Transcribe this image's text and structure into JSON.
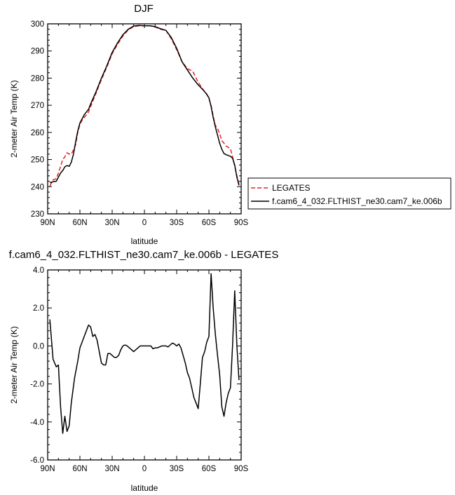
{
  "chart_data": [
    {
      "type": "line",
      "title": "DJF",
      "xlabel": "latitude",
      "ylabel": "2-meter Air Temp (K)",
      "xlim": [
        90,
        -90
      ],
      "ylim": [
        230,
        300
      ],
      "xticks": [
        {
          "value": 90,
          "label": "90N"
        },
        {
          "value": 60,
          "label": "60N"
        },
        {
          "value": 30,
          "label": "30N"
        },
        {
          "value": 0,
          "label": "0"
        },
        {
          "value": -30,
          "label": "30S"
        },
        {
          "value": -60,
          "label": "60S"
        },
        {
          "value": -90,
          "label": "90S"
        }
      ],
      "yticks": [
        {
          "value": 230,
          "label": "230"
        },
        {
          "value": 240,
          "label": "240"
        },
        {
          "value": 250,
          "label": "250"
        },
        {
          "value": 260,
          "label": "260"
        },
        {
          "value": 270,
          "label": "270"
        },
        {
          "value": 280,
          "label": "280"
        },
        {
          "value": 290,
          "label": "290"
        },
        {
          "value": 300,
          "label": "300"
        }
      ],
      "legend": {
        "position": "right"
      },
      "series": [
        {
          "name": "LEGATES",
          "color": "#e8201f",
          "dash": "dashed",
          "x": [
            88,
            85,
            82,
            80,
            78,
            76,
            74,
            72,
            70,
            68,
            66,
            64,
            62,
            60,
            58,
            56,
            54,
            52,
            50,
            45,
            40,
            35,
            30,
            25,
            20,
            15,
            10,
            5,
            0,
            -5,
            -10,
            -15,
            -20,
            -25,
            -30,
            -35,
            -40,
            -45,
            -50,
            -55,
            -58,
            -60,
            -62,
            -64,
            -66,
            -68,
            -70,
            -72,
            -74,
            -76,
            -78,
            -80,
            -82,
            -84,
            -86,
            -88
          ],
          "values": [
            240.2,
            242.5,
            243.0,
            245.0,
            247.5,
            250.0,
            251.0,
            252.5,
            252.0,
            252.0,
            253.5,
            255.5,
            260.0,
            263.0,
            264.5,
            265.5,
            266.5,
            267.5,
            269.5,
            274.5,
            279.5,
            284.0,
            289.0,
            292.5,
            295.5,
            297.8,
            299.0,
            299.3,
            299.3,
            299.3,
            298.8,
            298.0,
            297.6,
            294.5,
            290.5,
            286.0,
            283.5,
            282.5,
            278.5,
            275.5,
            274.2,
            272.5,
            270.0,
            266.0,
            262.5,
            261.5,
            259.5,
            257.0,
            256.0,
            255.0,
            254.5,
            254.0,
            251.0,
            247.5,
            244.0,
            241.0
          ]
        },
        {
          "name": "f.cam6_4_032.FLTHIST_ne30.cam7_ke.006b",
          "color": "#000000",
          "dash": "solid",
          "x": [
            88,
            85,
            82,
            80,
            78,
            76,
            74,
            72,
            70,
            68,
            66,
            64,
            62,
            60,
            58,
            56,
            54,
            52,
            50,
            45,
            40,
            35,
            30,
            25,
            20,
            15,
            10,
            5,
            0,
            -5,
            -10,
            -15,
            -20,
            -25,
            -30,
            -35,
            -40,
            -45,
            -50,
            -55,
            -58,
            -60,
            -62,
            -64,
            -66,
            -68,
            -70,
            -72,
            -74,
            -76,
            -78,
            -80,
            -82,
            -84,
            -86,
            -88
          ],
          "values": [
            241.5,
            241.8,
            242.0,
            243.5,
            245.0,
            246.0,
            247.3,
            247.8,
            247.5,
            249.0,
            252.0,
            256.5,
            260.5,
            263.5,
            265.0,
            266.5,
            267.5,
            268.5,
            270.5,
            275.0,
            280.0,
            284.5,
            289.5,
            293.0,
            296.0,
            298.0,
            299.2,
            299.4,
            299.3,
            299.3,
            299.0,
            298.2,
            297.6,
            295.0,
            291.0,
            286.0,
            283.0,
            280.0,
            277.5,
            275.5,
            274.0,
            272.8,
            269.5,
            265.5,
            262.0,
            259.0,
            256.0,
            253.8,
            252.2,
            251.8,
            251.5,
            251.2,
            250.5,
            248.0,
            243.5,
            240.5
          ]
        }
      ]
    },
    {
      "type": "line",
      "title": "f.cam6_4_032.FLTHIST_ne30.cam7_ke.006b - LEGATES",
      "xlabel": "latitude",
      "ylabel": "2-meter Air Temp (K)",
      "xlim": [
        90,
        -90
      ],
      "ylim": [
        -6,
        4
      ],
      "xticks": [
        {
          "value": 90,
          "label": "90N"
        },
        {
          "value": 60,
          "label": "60N"
        },
        {
          "value": 30,
          "label": "30N"
        },
        {
          "value": 0,
          "label": "0"
        },
        {
          "value": -30,
          "label": "30S"
        },
        {
          "value": -60,
          "label": "60S"
        },
        {
          "value": -90,
          "label": "90S"
        }
      ],
      "yticks": [
        {
          "value": -6,
          "label": "-6.0"
        },
        {
          "value": -4,
          "label": "-4.0"
        },
        {
          "value": -2,
          "label": "-2.0"
        },
        {
          "value": 0,
          "label": "0.0"
        },
        {
          "value": 2,
          "label": "2.0"
        },
        {
          "value": 4,
          "label": "4.0"
        }
      ],
      "series": [
        {
          "color": "#000000",
          "dash": "solid",
          "x": [
            88,
            85,
            82,
            80,
            78,
            76,
            74,
            72,
            70,
            68,
            65,
            62,
            60,
            58,
            56,
            54,
            52,
            50,
            48,
            46,
            44,
            42,
            40,
            38,
            36,
            34,
            32,
            30,
            28,
            26,
            24,
            22,
            20,
            18,
            16,
            14,
            12,
            10,
            8,
            6,
            4,
            2,
            0,
            -2,
            -4,
            -6,
            -8,
            -10,
            -12,
            -14,
            -16,
            -18,
            -20,
            -22,
            -24,
            -26,
            -28,
            -30,
            -32,
            -34,
            -36,
            -38,
            -40,
            -42,
            -44,
            -46,
            -48,
            -50,
            -52,
            -54,
            -56,
            -58,
            -60,
            -62,
            -64,
            -66,
            -68,
            -70,
            -72,
            -74,
            -76,
            -78,
            -80,
            -82,
            -84,
            -86,
            -88
          ],
          "values": [
            1.4,
            -0.7,
            -1.1,
            -1.0,
            -3.2,
            -4.6,
            -3.7,
            -4.5,
            -4.2,
            -3.0,
            -1.7,
            -0.8,
            -0.1,
            0.2,
            0.5,
            0.8,
            1.1,
            1.0,
            0.5,
            0.6,
            0.3,
            -0.3,
            -0.9,
            -1.0,
            -1.0,
            -0.4,
            -0.4,
            -0.5,
            -0.6,
            -0.6,
            -0.5,
            -0.2,
            0.0,
            0.05,
            0.0,
            -0.1,
            -0.2,
            -0.3,
            -0.2,
            -0.1,
            0.0,
            0.0,
            0.0,
            0.0,
            0.0,
            0.0,
            -0.15,
            -0.1,
            -0.1,
            -0.05,
            0.0,
            0.0,
            0.0,
            -0.05,
            0.05,
            0.15,
            0.1,
            0.0,
            0.1,
            -0.1,
            -0.5,
            -0.9,
            -1.4,
            -1.7,
            -2.2,
            -2.7,
            -3.0,
            -3.3,
            -2.0,
            -0.6,
            -0.3,
            0.2,
            0.5,
            3.8,
            2.0,
            0.6,
            -0.5,
            -1.5,
            -3.2,
            -3.7,
            -3.0,
            -2.5,
            -2.2,
            0.0,
            2.9,
            0.0,
            -1.8
          ]
        }
      ]
    }
  ]
}
